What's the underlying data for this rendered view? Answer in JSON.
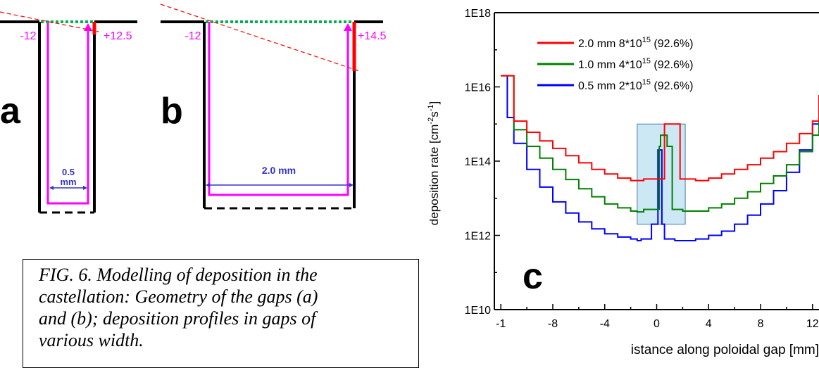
{
  "panel_a": {
    "letter": "a",
    "left_label": "-12",
    "right_label": "+12.5",
    "width_label_1": "0.5",
    "width_label_2": "mm"
  },
  "panel_b": {
    "letter": "b",
    "left_label": "-12",
    "right_label": "+14.5",
    "width_label": "2.0 mm"
  },
  "panel_c": {
    "letter": "c"
  },
  "caption": {
    "lines": [
      "FIG. 6. Modelling of deposition in the",
      "castellation: Geometry of the gaps (a)",
      "and (b); deposition profiles in gaps of",
      "various width."
    ]
  },
  "colors": {
    "red": "#ff0000",
    "green": "#008000",
    "blue": "#0000ff",
    "magenta": "#ff00ff",
    "dim_blue": "#3333cc",
    "dotted_green": "#00b050",
    "highlight_fill": "#cce8f4"
  },
  "chart_data": {
    "type": "line",
    "ylabel_base": "deposition rate [cm",
    "ylabel_sup1": "-2",
    "ylabel_mid": "s",
    "ylabel_sup2": "-1",
    "ylabel_end": "]",
    "xlabel": "istance along poloidal gap [mm]",
    "y_scale": "log",
    "ylim": [
      10000000000.0,
      1e+18
    ],
    "xlim": [
      -12.5,
      12.5
    ],
    "y_ticks": [
      "1E10",
      "1E12",
      "1E14",
      "1E16",
      "1E18"
    ],
    "x_ticks": [
      "-1",
      "-8",
      "-4",
      "0",
      "4",
      "8",
      "12"
    ],
    "series": [
      {
        "name": "2.0 mm 8*10",
        "sup": "15",
        "suffix": " (92.6%)",
        "x": [
          -12,
          -11,
          -10,
          -9,
          -8,
          -7,
          -6,
          -5,
          -4,
          -3,
          -2,
          -1.5,
          -1,
          0.4,
          0.6,
          1.6,
          1.8,
          2.5,
          3,
          4,
          5,
          6,
          7,
          8,
          9,
          10,
          11,
          12,
          12.5
        ],
        "y": [
          2e+16,
          1200000000000000.0,
          600000000000000.0,
          350000000000000.0,
          220000000000000.0,
          140000000000000.0,
          90000000000000.0,
          60000000000000.0,
          45000000000000.0,
          35000000000000.0,
          30000000000000.0,
          30000000000000.0,
          33000000000000.0,
          33000000000000.0,
          1000000000000000.0,
          1000000000000000.0,
          33000000000000.0,
          33000000000000.0,
          30000000000000.0,
          35000000000000.0,
          45000000000000.0,
          60000000000000.0,
          80000000000000.0,
          120000000000000.0,
          180000000000000.0,
          300000000000000.0,
          550000000000000.0,
          1200000000000000.0,
          6000000000000000.0
        ]
      },
      {
        "name": "1.0 mm 4*10",
        "sup": "15",
        "suffix": " (92.6%)",
        "x": [
          -12,
          -11,
          -10,
          -9,
          -8,
          -7,
          -6,
          -5,
          -4,
          -3,
          -2,
          -1.5,
          -1,
          -0.2,
          0.2,
          0.3,
          0.7,
          0.8,
          1.2,
          2,
          3,
          4,
          5,
          6,
          7,
          8,
          9,
          10,
          11,
          12,
          12.5
        ],
        "y": [
          2e+16,
          700000000000000.0,
          250000000000000.0,
          120000000000000.0,
          60000000000000.0,
          32000000000000.0,
          18000000000000.0,
          11000000000000.0,
          7000000000000.0,
          5500000000000.0,
          4500000000000.0,
          4300000000000.0,
          5000000000000.0,
          5000000000000.0,
          250000000000000.0,
          500000000000000.0,
          500000000000000.0,
          250000000000000.0,
          5000000000000.0,
          4500000000000.0,
          4500000000000.0,
          5500000000000.0,
          7000000000000.0,
          10000000000000.0,
          15000000000000.0,
          25000000000000.0,
          40000000000000.0,
          80000000000000.0,
          180000000000000.0,
          500000000000000.0,
          6000000000000000.0
        ]
      },
      {
        "name": "0.5 mm 2*10",
        "sup": "15",
        "suffix": " (92.6%)",
        "x": [
          -12,
          -11.5,
          -11,
          -10,
          -9,
          -8,
          -7,
          -6,
          -5,
          -4,
          -3,
          -2,
          -1.5,
          -1.2,
          -0.6,
          -0.4,
          -0.2,
          0.1,
          0.2,
          0.4,
          0.5,
          0.6,
          0.8,
          1.4,
          2,
          3,
          4,
          5,
          6,
          7,
          8,
          9,
          10,
          11,
          12,
          12.5
        ],
        "y": [
          2e+16,
          1500000000000000.0,
          300000000000000.0,
          60000000000000.0,
          20000000000000.0,
          8000000000000.0,
          4000000000000.0,
          2300000000000.0,
          1500000000000.0,
          1100000000000.0,
          900000000000.0,
          800000000000.0,
          720000000000.0,
          800000000000.0,
          800000000000.0,
          2000000000000.0,
          2000000000000.0,
          200000000000000.0,
          200000000000000.0,
          2000000000000.0,
          2000000000000.0,
          800000000000.0,
          800000000000.0,
          720000000000.0,
          720000000000.0,
          800000000000.0,
          1000000000000.0,
          1300000000000.0,
          2000000000000.0,
          3500000000000.0,
          7000000000000.0,
          16000000000000.0,
          50000000000000.0,
          200000000000000.0,
          1000000000000000.0,
          6000000000000000.0
        ]
      }
    ],
    "highlight_region": {
      "x": [
        -1.5,
        2.2
      ],
      "y": [
        2000000000000.0,
        1000000000000000.0
      ]
    }
  }
}
